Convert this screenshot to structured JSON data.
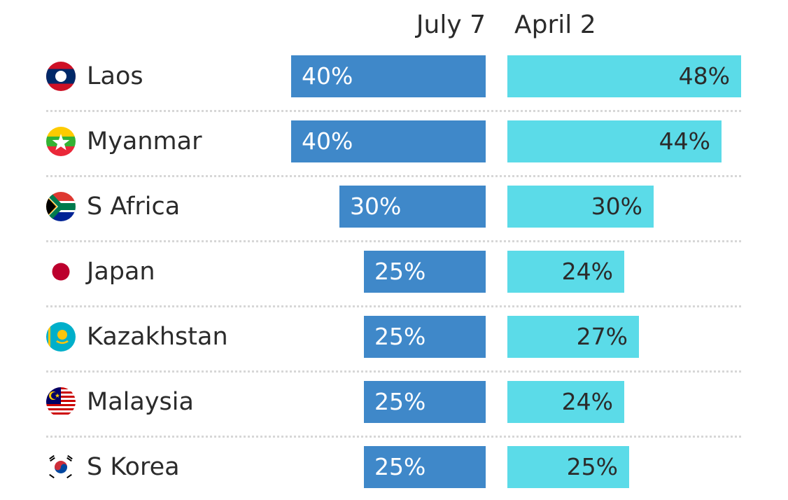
{
  "chart_data": {
    "type": "bar",
    "series": [
      {
        "name": "July 7",
        "values": [
          40,
          40,
          30,
          25,
          25,
          25,
          25
        ],
        "labels": [
          "40%",
          "40%",
          "30%",
          "25%",
          "25%",
          "25%",
          "25%"
        ],
        "color": "#3f88c9"
      },
      {
        "name": "April 2",
        "values": [
          48,
          44,
          30,
          24,
          27,
          24,
          25
        ],
        "labels": [
          "48%",
          "44%",
          "30%",
          "24%",
          "27%",
          "24%",
          "25%"
        ],
        "color": "#5bdbe8"
      }
    ],
    "categories": [
      "Laos",
      "Myanmar",
      "S Africa",
      "Japan",
      "Kazakhstan",
      "Malaysia",
      "S Korea"
    ],
    "flags": [
      "laos-flag-icon",
      "myanmar-flag-icon",
      "south-africa-flag-icon",
      "japan-flag-icon",
      "kazakhstan-flag-icon",
      "malaysia-flag-icon",
      "south-korea-flag-icon"
    ],
    "unit": "%",
    "grid": false,
    "legend": "column headers at top"
  }
}
